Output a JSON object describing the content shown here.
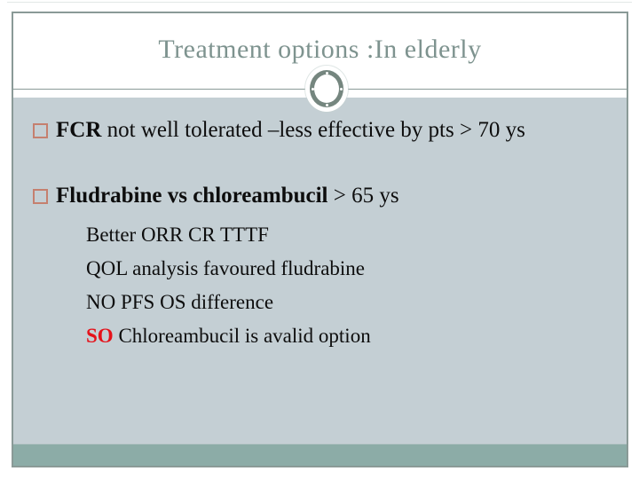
{
  "slide": {
    "title": "Treatment options :In elderly",
    "content": {
      "bullets": [
        {
          "lead": "FCR",
          "rest": " not well tolerated –less effective by pts > 70 ys"
        },
        {
          "lead": "Fludrabine vs chloreambucil",
          "rest": " > 65 ys"
        }
      ],
      "subpoints": [
        {
          "emphasis": "",
          "text": "Better ORR CR TTTF"
        },
        {
          "emphasis": "",
          "text": "QOL analysis favoured fludrabine"
        },
        {
          "emphasis": "",
          "text": "NO PFS OS difference"
        },
        {
          "emphasis": "SO",
          "text": " Chloreambucil is avalid option"
        }
      ]
    },
    "colors": {
      "content_bg": "#c4cfd4",
      "footer_band": "#8caca7",
      "title_text": "#7e938f",
      "border": "#8a9a97",
      "ornament": "#75867f",
      "bullet_marker": "#c5806f",
      "emphasis_red": "#e5121a",
      "body_text": "#0d0d0d"
    }
  }
}
